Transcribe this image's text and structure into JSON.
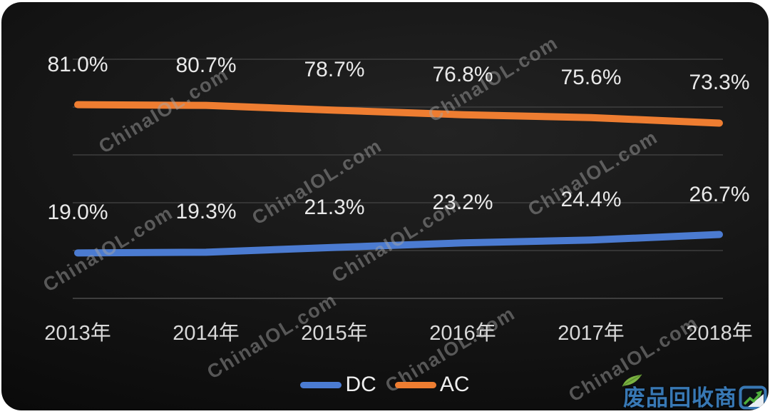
{
  "chart_data": {
    "type": "line",
    "title": "",
    "xlabel": "",
    "ylabel": "",
    "categories": [
      "2013年",
      "2014年",
      "2015年",
      "2016年",
      "2017年",
      "2018年"
    ],
    "series": [
      {
        "name": "DC",
        "color": "#4b7bd1",
        "values": [
          19.0,
          19.3,
          21.3,
          23.2,
          24.4,
          26.7
        ],
        "labels": [
          "19.0%",
          "19.3%",
          "21.3%",
          "23.2%",
          "24.4%",
          "26.7%"
        ]
      },
      {
        "name": "AC",
        "color": "#ee7d31",
        "values": [
          81.0,
          80.7,
          78.7,
          76.8,
          75.6,
          73.3
        ],
        "labels": [
          "81.0%",
          "80.7%",
          "78.7%",
          "76.8%",
          "75.6%",
          "73.3%"
        ]
      }
    ],
    "ylim": [
      0,
      100
    ],
    "grid": true,
    "gridline_step": 20,
    "legend_position": "bottom",
    "data_labels": true
  },
  "colors": {
    "data_label": "#e9e9e9",
    "axis_label": "#d9d9d9",
    "gridline": "#454545",
    "baseline": "#585858",
    "card_bg": "#141414",
    "page_bg": "#ffffff"
  },
  "watermark": {
    "text": "ChinaIOL.com",
    "color": "#a5a5a5"
  },
  "logo": {
    "text": "废品回收商",
    "last_char": "网",
    "color": "#3878b4",
    "leaf_color": "#7cb342",
    "arrow_color": "#4fae3d",
    "leaf_icon": "leaf-icon",
    "chart_icon": "up-trend-arrow-icon"
  }
}
